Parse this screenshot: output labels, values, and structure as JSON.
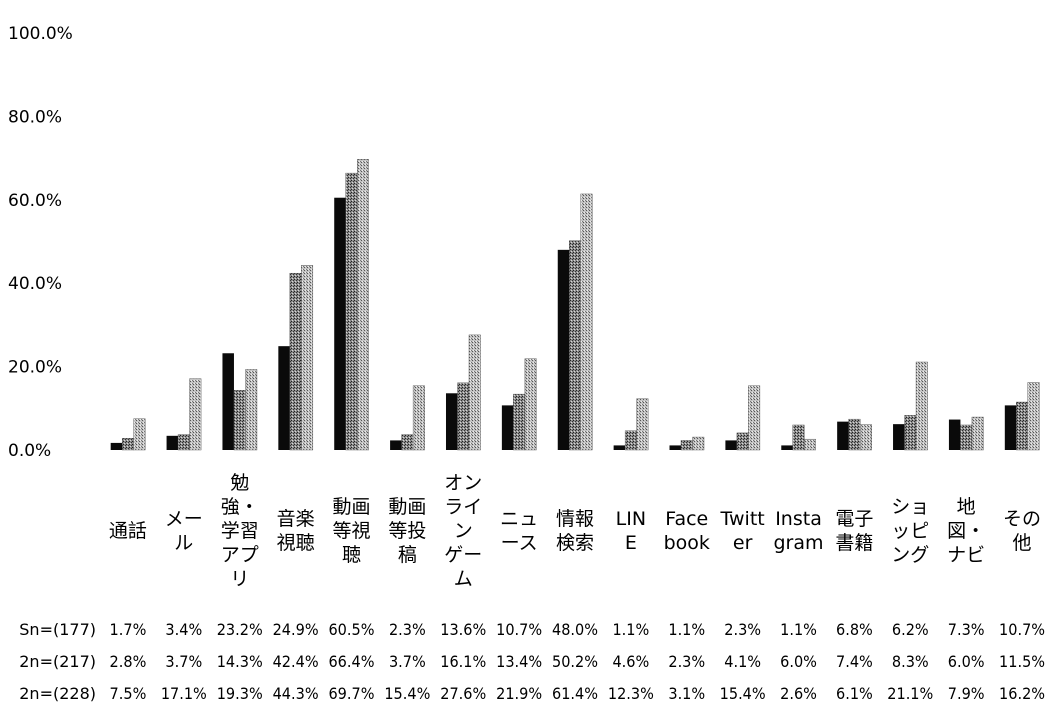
{
  "chart_data": {
    "type": "bar",
    "title": "",
    "xlabel": "",
    "ylabel": "",
    "ylim": [
      0,
      100
    ],
    "yticks": [
      "0.0%",
      "20.0%",
      "40.0%",
      "60.0%",
      "80.0%",
      "100.0%"
    ],
    "grid": false,
    "legend": "none",
    "categories": [
      "通話",
      "メール",
      "勉強・学習アプリ",
      "音楽視聴",
      "動画等視聴",
      "動画等投稿",
      "オンラインゲーム",
      "ニュース",
      "情報検索",
      "LINE",
      "Facebook",
      "Twitter",
      "Instagram",
      "電子書籍",
      "ショッピング",
      "地図・ナビ",
      "その他"
    ],
    "category_lines": [
      [
        "通話"
      ],
      [
        "メー",
        "ル"
      ],
      [
        "勉",
        "強・",
        "学習",
        "アプ",
        "リ"
      ],
      [
        "音楽",
        "視聴"
      ],
      [
        "動画",
        "等視",
        "聴"
      ],
      [
        "動画",
        "等投",
        "稿"
      ],
      [
        "オン",
        "ライ",
        "ン",
        "ゲー",
        "ム"
      ],
      [
        "ニュ",
        "ース"
      ],
      [
        "情報",
        "検索"
      ],
      [
        "LIN",
        "E"
      ],
      [
        "Face",
        "book"
      ],
      [
        "Twitt",
        "er"
      ],
      [
        "Insta",
        "gram"
      ],
      [
        "電子",
        "書籍"
      ],
      [
        "ショ",
        "ッピ",
        "ング"
      ],
      [
        "地",
        "図・",
        "ナビ"
      ],
      [
        "その",
        "他"
      ]
    ],
    "series": [
      {
        "name": "Sn=(177)",
        "values": [
          1.7,
          3.4,
          23.2,
          24.9,
          60.5,
          2.3,
          13.6,
          10.7,
          48.0,
          1.1,
          1.1,
          2.3,
          1.1,
          6.8,
          6.2,
          7.3,
          10.7
        ],
        "labels": [
          "1.7%",
          "3.4%",
          "23.2%",
          "24.9%",
          "60.5%",
          "2.3%",
          "13.6%",
          "10.7%",
          "48.0%",
          "1.1%",
          "1.1%",
          "2.3%",
          "1.1%",
          "6.8%",
          "6.2%",
          "7.3%",
          "10.7%"
        ]
      },
      {
        "name": "2n=(217)",
        "values": [
          2.8,
          3.7,
          14.3,
          42.4,
          66.4,
          3.7,
          16.1,
          13.4,
          50.2,
          4.6,
          2.3,
          4.1,
          6.0,
          7.4,
          8.3,
          6.0,
          11.5
        ],
        "labels": [
          "2.8%",
          "3.7%",
          "14.3%",
          "42.4%",
          "66.4%",
          "3.7%",
          "16.1%",
          "13.4%",
          "50.2%",
          "4.6%",
          "2.3%",
          "4.1%",
          "6.0%",
          "7.4%",
          "8.3%",
          "6.0%",
          "11.5%"
        ]
      },
      {
        "name": "2n=(228)",
        "values": [
          7.5,
          17.1,
          19.3,
          44.3,
          69.7,
          15.4,
          27.6,
          21.9,
          61.4,
          12.3,
          3.1,
          15.4,
          2.6,
          6.1,
          21.1,
          7.9,
          16.2
        ],
        "labels": [
          "7.5%",
          "17.1%",
          "19.3%",
          "44.3%",
          "69.7%",
          "15.4%",
          "27.6%",
          "21.9%",
          "61.4%",
          "12.3%",
          "3.1%",
          "15.4%",
          "2.6%",
          "6.1%",
          "21.1%",
          "7.9%",
          "16.2%"
        ]
      }
    ],
    "series_colors": [
      "#0a0a0a",
      "#6e6e6e",
      "#a8a8a8"
    ]
  }
}
